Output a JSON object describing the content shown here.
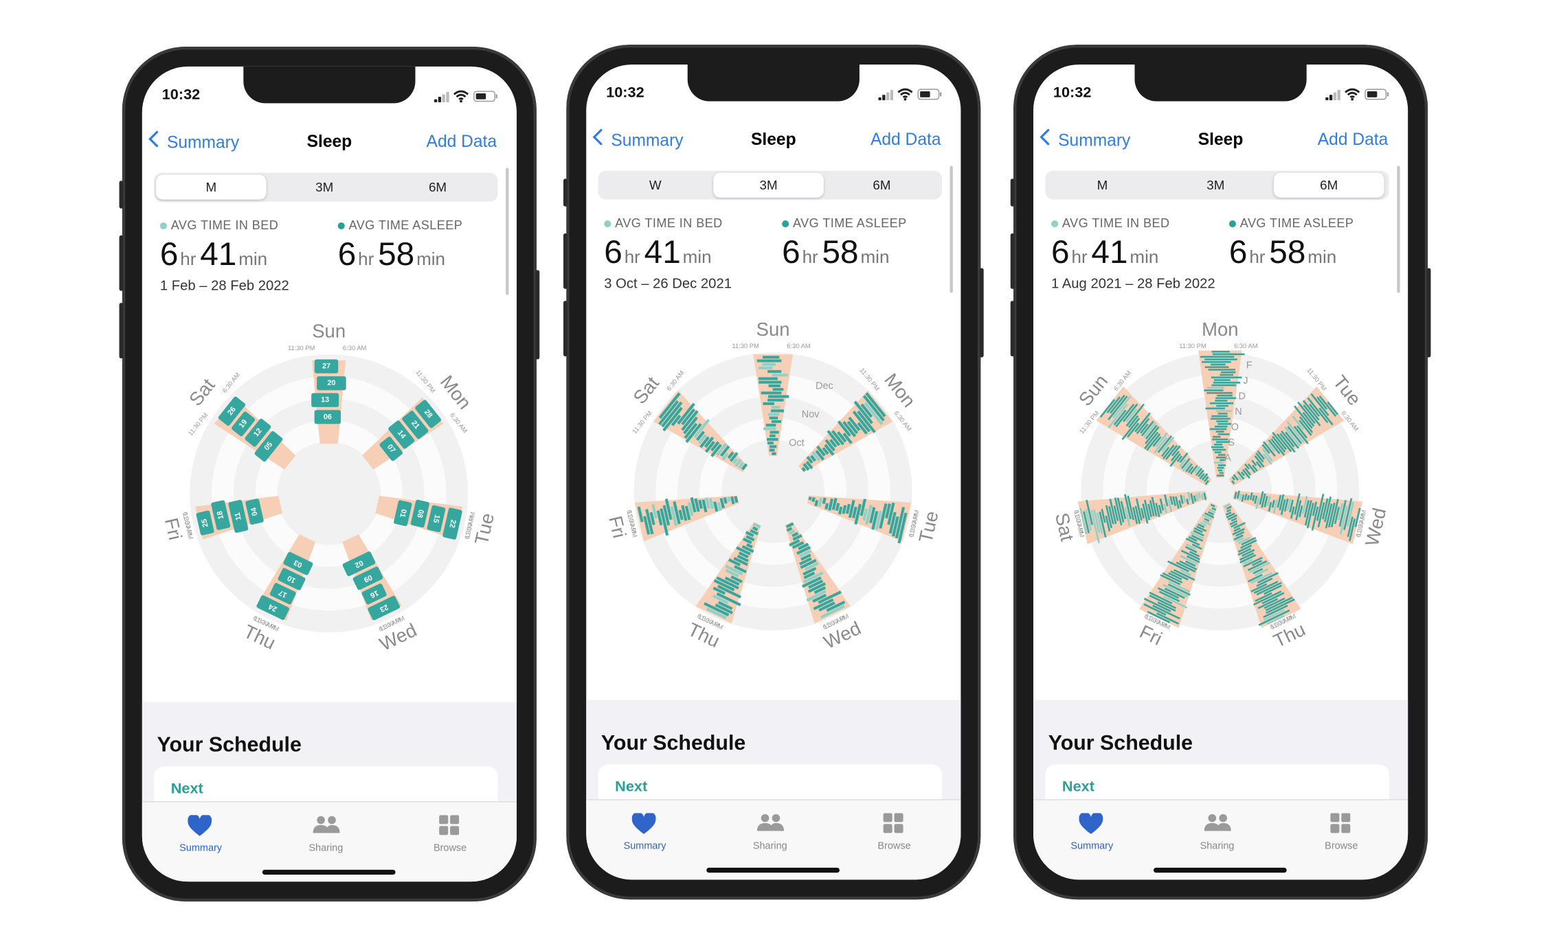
{
  "phones": [
    {
      "status": {
        "time": "10:32"
      },
      "nav": {
        "back": "Summary",
        "title": "Sleep",
        "action": "Add Data"
      },
      "segments": [
        "M",
        "3M",
        "6M"
      ],
      "selected_segment": 0,
      "stats": [
        {
          "label": "AVG TIME IN BED",
          "hours": "6",
          "hours_unit": "hr",
          "minutes": "41",
          "minutes_unit": "min"
        },
        {
          "label": "AVG TIME ASLEEP",
          "hours": "6",
          "hours_unit": "hr",
          "minutes": "58",
          "minutes_unit": "min"
        }
      ],
      "date_range": "1 Feb – 28 Feb 2022",
      "chart": {
        "style": "weeks",
        "days": [
          "Sun",
          "Mon",
          "Tue",
          "Wed",
          "Thu",
          "Fri",
          "Sat"
        ],
        "time_labels": [
          "11:30 PM",
          "6:30 AM"
        ],
        "dates": [
          [
            "27",
            "20",
            "13",
            "06"
          ],
          [
            "28",
            "21",
            "14",
            "07"
          ],
          [
            "22",
            "15",
            "08",
            "01"
          ],
          [
            "23",
            "16",
            "09",
            "02"
          ],
          [
            "24",
            "17",
            "10",
            "03"
          ],
          [
            "25",
            "18",
            "11",
            "04"
          ],
          [
            "26",
            "19",
            "12",
            "05"
          ]
        ]
      },
      "schedule": {
        "title": "Your Schedule",
        "next": "Next"
      },
      "tabs": [
        "Summary",
        "Sharing",
        "Browse"
      ]
    },
    {
      "status": {
        "time": "10:32"
      },
      "nav": {
        "back": "Summary",
        "title": "Sleep",
        "action": "Add Data"
      },
      "segments": [
        "W",
        "3M",
        "6M"
      ],
      "selected_segment": 1,
      "stats": [
        {
          "label": "AVG TIME IN BED",
          "hours": "6",
          "hours_unit": "hr",
          "minutes": "41",
          "minutes_unit": "min"
        },
        {
          "label": "AVG TIME ASLEEP",
          "hours": "6",
          "hours_unit": "hr",
          "minutes": "58",
          "minutes_unit": "min"
        }
      ],
      "date_range": "3 Oct – 26 Dec 2021",
      "chart": {
        "style": "months",
        "days": [
          "Sun",
          "Mon",
          "Tue",
          "Wed",
          "Thu",
          "Fri",
          "Sat"
        ],
        "time_labels": [
          "11:30 PM",
          "6:30 AM"
        ],
        "ring_labels": [
          "Dec",
          "Nov",
          "Oct"
        ]
      },
      "schedule": {
        "title": "Your Schedule",
        "next": "Next"
      },
      "tabs": [
        "Summary",
        "Sharing",
        "Browse"
      ]
    },
    {
      "status": {
        "time": "10:32"
      },
      "nav": {
        "back": "Summary",
        "title": "Sleep",
        "action": "Add Data"
      },
      "segments": [
        "M",
        "3M",
        "6M"
      ],
      "selected_segment": 2,
      "stats": [
        {
          "label": "AVG TIME IN BED",
          "hours": "6",
          "hours_unit": "hr",
          "minutes": "41",
          "minutes_unit": "min"
        },
        {
          "label": "AVG TIME ASLEEP",
          "hours": "6",
          "hours_unit": "hr",
          "minutes": "58",
          "minutes_unit": "min"
        }
      ],
      "date_range": "1 Aug 2021 – 28 Feb 2022",
      "chart": {
        "style": "half-year",
        "days": [
          "Mon",
          "Tue",
          "Wed",
          "Thu",
          "Fri",
          "Sat",
          "Sun"
        ],
        "time_labels": [
          "11:30 PM",
          "6:30 AM"
        ],
        "ring_labels": [
          "F",
          "J",
          "D",
          "N",
          "O",
          "S",
          "A"
        ]
      },
      "schedule": {
        "title": "Your Schedule",
        "next": "Next"
      },
      "tabs": [
        "Summary",
        "Sharing",
        "Browse"
      ]
    }
  ]
}
